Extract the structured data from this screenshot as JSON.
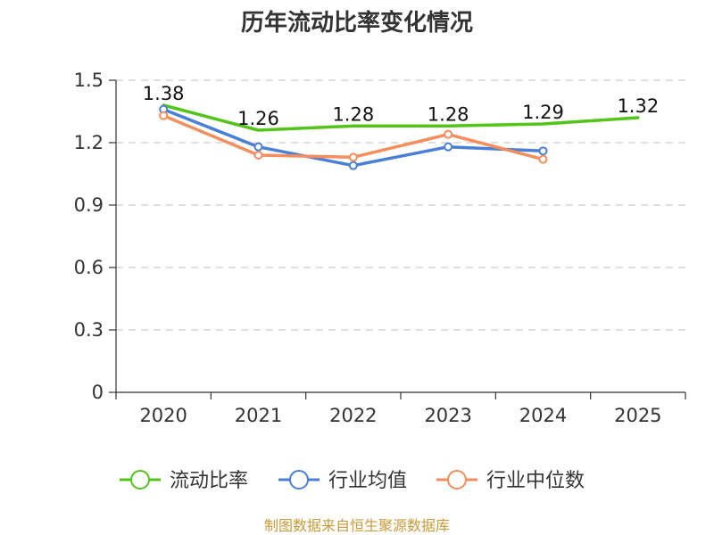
{
  "chart_data": {
    "type": "line",
    "title": "历年流动比率变化情况",
    "categories": [
      "2020",
      "2021",
      "2022",
      "2023",
      "2024",
      "2025"
    ],
    "ylim": [
      0,
      1.5
    ],
    "yticks": [
      "0",
      "0.3",
      "0.6",
      "0.9",
      "1.2",
      "1.5"
    ],
    "grid": true,
    "legend_position": "bottom",
    "series": [
      {
        "name": "流动比率",
        "color": "#52c41a",
        "values": [
          1.38,
          1.26,
          1.28,
          1.28,
          1.29,
          1.32
        ],
        "labels": [
          "1.38",
          "1.26",
          "1.28",
          "1.28",
          "1.29",
          "1.32"
        ]
      },
      {
        "name": "行业均值",
        "color": "#4a7fd8",
        "values": [
          1.36,
          1.18,
          1.09,
          1.18,
          1.16,
          null
        ]
      },
      {
        "name": "行业中位数",
        "color": "#f58d5c",
        "values": [
          1.33,
          1.14,
          1.13,
          1.24,
          1.12,
          null
        ]
      }
    ],
    "source": "制图数据来自恒生聚源数据库"
  }
}
